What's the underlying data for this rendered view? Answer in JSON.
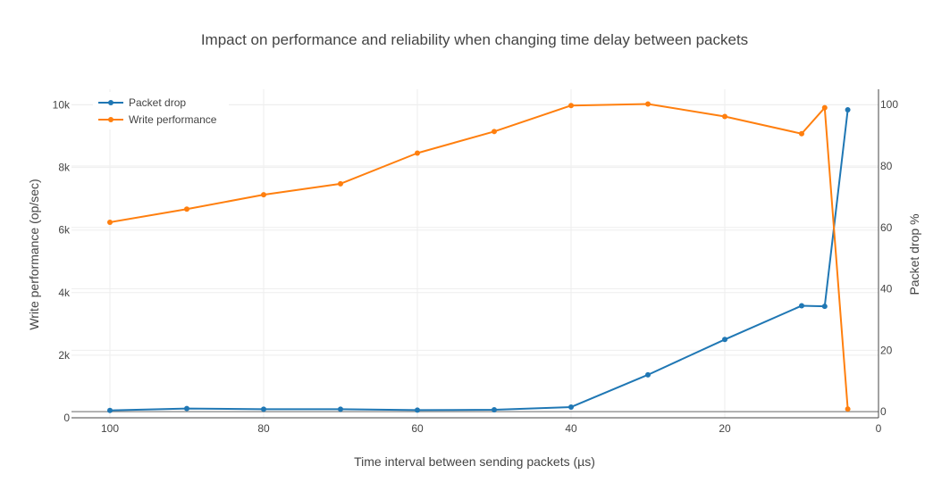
{
  "chart_data": {
    "type": "line",
    "title": "Impact on performance and reliability when changing time delay between packets",
    "xlabel": "Time interval between sending packets (µs)",
    "ylabel": "Write performance (op/sec)",
    "y2label": "Packet drop %",
    "xlim": [
      105,
      0
    ],
    "ylim": [
      0,
      10500
    ],
    "y2lim": [
      -2,
      105
    ],
    "x_ticks": [
      100,
      80,
      60,
      40,
      20,
      0
    ],
    "y_ticks": [
      0,
      2000,
      4000,
      6000,
      8000,
      10000
    ],
    "y_tick_labels": [
      "0",
      "2k",
      "4k",
      "6k",
      "8k",
      "10k"
    ],
    "y2_ticks": [
      0,
      20,
      40,
      60,
      80,
      100
    ],
    "grid": true,
    "legend_position": "top-left",
    "series": [
      {
        "name": "Packet drop",
        "axis": "right",
        "color": "#1f77b4",
        "x": [
          100,
          90,
          80,
          70,
          60,
          50,
          40,
          30,
          20,
          10,
          7,
          4
        ],
        "values": [
          0.4,
          1.0,
          0.8,
          0.8,
          0.5,
          0.6,
          1.5,
          12.0,
          23.5,
          34.5,
          34.3,
          98.3
        ]
      },
      {
        "name": "Write performance",
        "axis": "left",
        "color": "#ff7f0e",
        "x": [
          100,
          90,
          80,
          70,
          60,
          50,
          40,
          30,
          20,
          10,
          7,
          4
        ],
        "values": [
          6250,
          6670,
          7130,
          7480,
          8460,
          9150,
          9980,
          10030,
          9630,
          9080,
          9910,
          280
        ]
      }
    ]
  }
}
